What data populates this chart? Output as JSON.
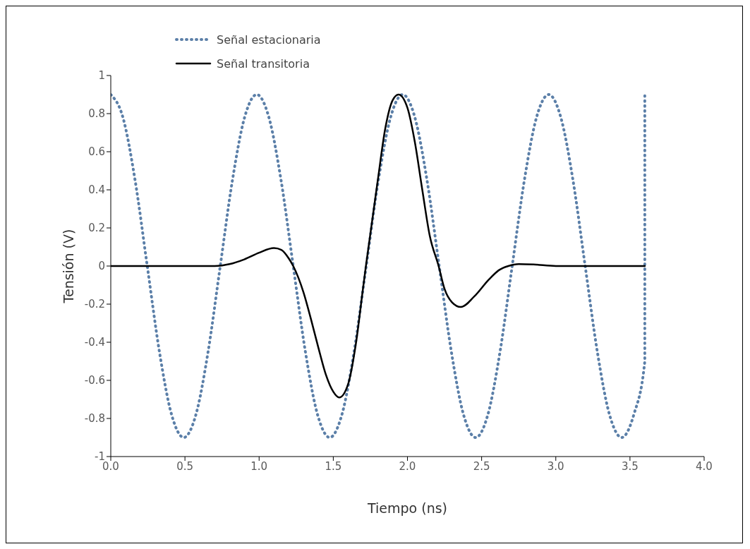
{
  "chart_data": {
    "type": "line",
    "xlabel": "Tiempo (ns)",
    "ylabel": "Tensión (V)",
    "xlim": [
      0,
      4
    ],
    "xticks": [
      {
        "value": 0,
        "label": "0.0"
      },
      {
        "value": 0.5,
        "label": "0.5"
      },
      {
        "value": 1,
        "label": "1.0"
      },
      {
        "value": 1.5,
        "label": "1.5"
      },
      {
        "value": 2,
        "label": "2.0"
      },
      {
        "value": 2.5,
        "label": "2.5"
      },
      {
        "value": 3,
        "label": "3.0"
      },
      {
        "value": 3.5,
        "label": "3.5"
      },
      {
        "value": 4,
        "label": "4.0"
      }
    ],
    "ylim": [
      -1,
      1
    ],
    "yticks": [
      -1,
      -0.8,
      -0.6,
      -0.4,
      -0.2,
      0,
      0.2,
      0.4,
      0.6,
      0.8,
      1
    ],
    "grid": false,
    "legend": "top left",
    "marker": "none",
    "series": [
      {
        "name": "Señal estacionaria",
        "color": "#5b7fa8",
        "line_style": "dotted",
        "x": [
          0,
          0.082,
          0.164,
          0.246,
          0.328,
          0.41,
          0.492,
          0.574,
          0.656,
          0.738,
          0.82,
          0.902,
          0.984,
          1.066,
          1.148,
          1.23,
          1.312,
          1.394,
          1.476,
          1.558,
          1.64,
          1.722,
          1.804,
          1.886,
          1.968,
          2.05,
          2.132,
          2.214,
          2.296,
          2.378,
          2.46,
          2.542,
          2.624,
          2.706,
          2.788,
          2.87,
          2.952,
          3.034,
          3.116,
          3.198,
          3.28,
          3.362,
          3.444,
          3.526,
          3.6,
          3.6
        ],
        "values": [
          0.9,
          0.78,
          0.45,
          0,
          -0.45,
          -0.78,
          -0.9,
          -0.78,
          -0.45,
          0,
          0.45,
          0.78,
          0.9,
          0.78,
          0.45,
          0,
          -0.45,
          -0.78,
          -0.9,
          -0.78,
          -0.45,
          0,
          0.45,
          0.78,
          0.9,
          0.78,
          0.45,
          0,
          -0.45,
          -0.78,
          -0.9,
          -0.78,
          -0.45,
          0,
          0.45,
          0.78,
          0.9,
          0.78,
          0.45,
          0,
          -0.45,
          -0.78,
          -0.9,
          -0.78,
          -0.5,
          0.9
        ]
      },
      {
        "name": "Señal transitoria",
        "color": "#000000",
        "line_style": "solid",
        "x": [
          0,
          0.5,
          0.7,
          0.75,
          0.8,
          0.9,
          1.0,
          1.1,
          1.15,
          1.2,
          1.23,
          1.3,
          1.35,
          1.4,
          1.45,
          1.5,
          1.54,
          1.6,
          1.65,
          1.7,
          1.72,
          1.8,
          1.85,
          1.9,
          1.94,
          2.0,
          2.05,
          2.1,
          2.15,
          2.21,
          2.25,
          2.3,
          2.36,
          2.45,
          2.55,
          2.62,
          2.68,
          2.75,
          2.85,
          3.0,
          3.3,
          3.6
        ],
        "values": [
          0,
          0,
          0,
          0.003,
          0.01,
          0.035,
          0.07,
          0.094,
          0.085,
          0.04,
          0,
          -0.14,
          -0.28,
          -0.43,
          -0.57,
          -0.66,
          -0.69,
          -0.62,
          -0.42,
          -0.12,
          0,
          0.45,
          0.72,
          0.87,
          0.9,
          0.83,
          0.65,
          0.4,
          0.16,
          0,
          -0.12,
          -0.19,
          -0.215,
          -0.16,
          -0.07,
          -0.02,
          0,
          0.01,
          0.008,
          0,
          0,
          0
        ]
      }
    ]
  }
}
